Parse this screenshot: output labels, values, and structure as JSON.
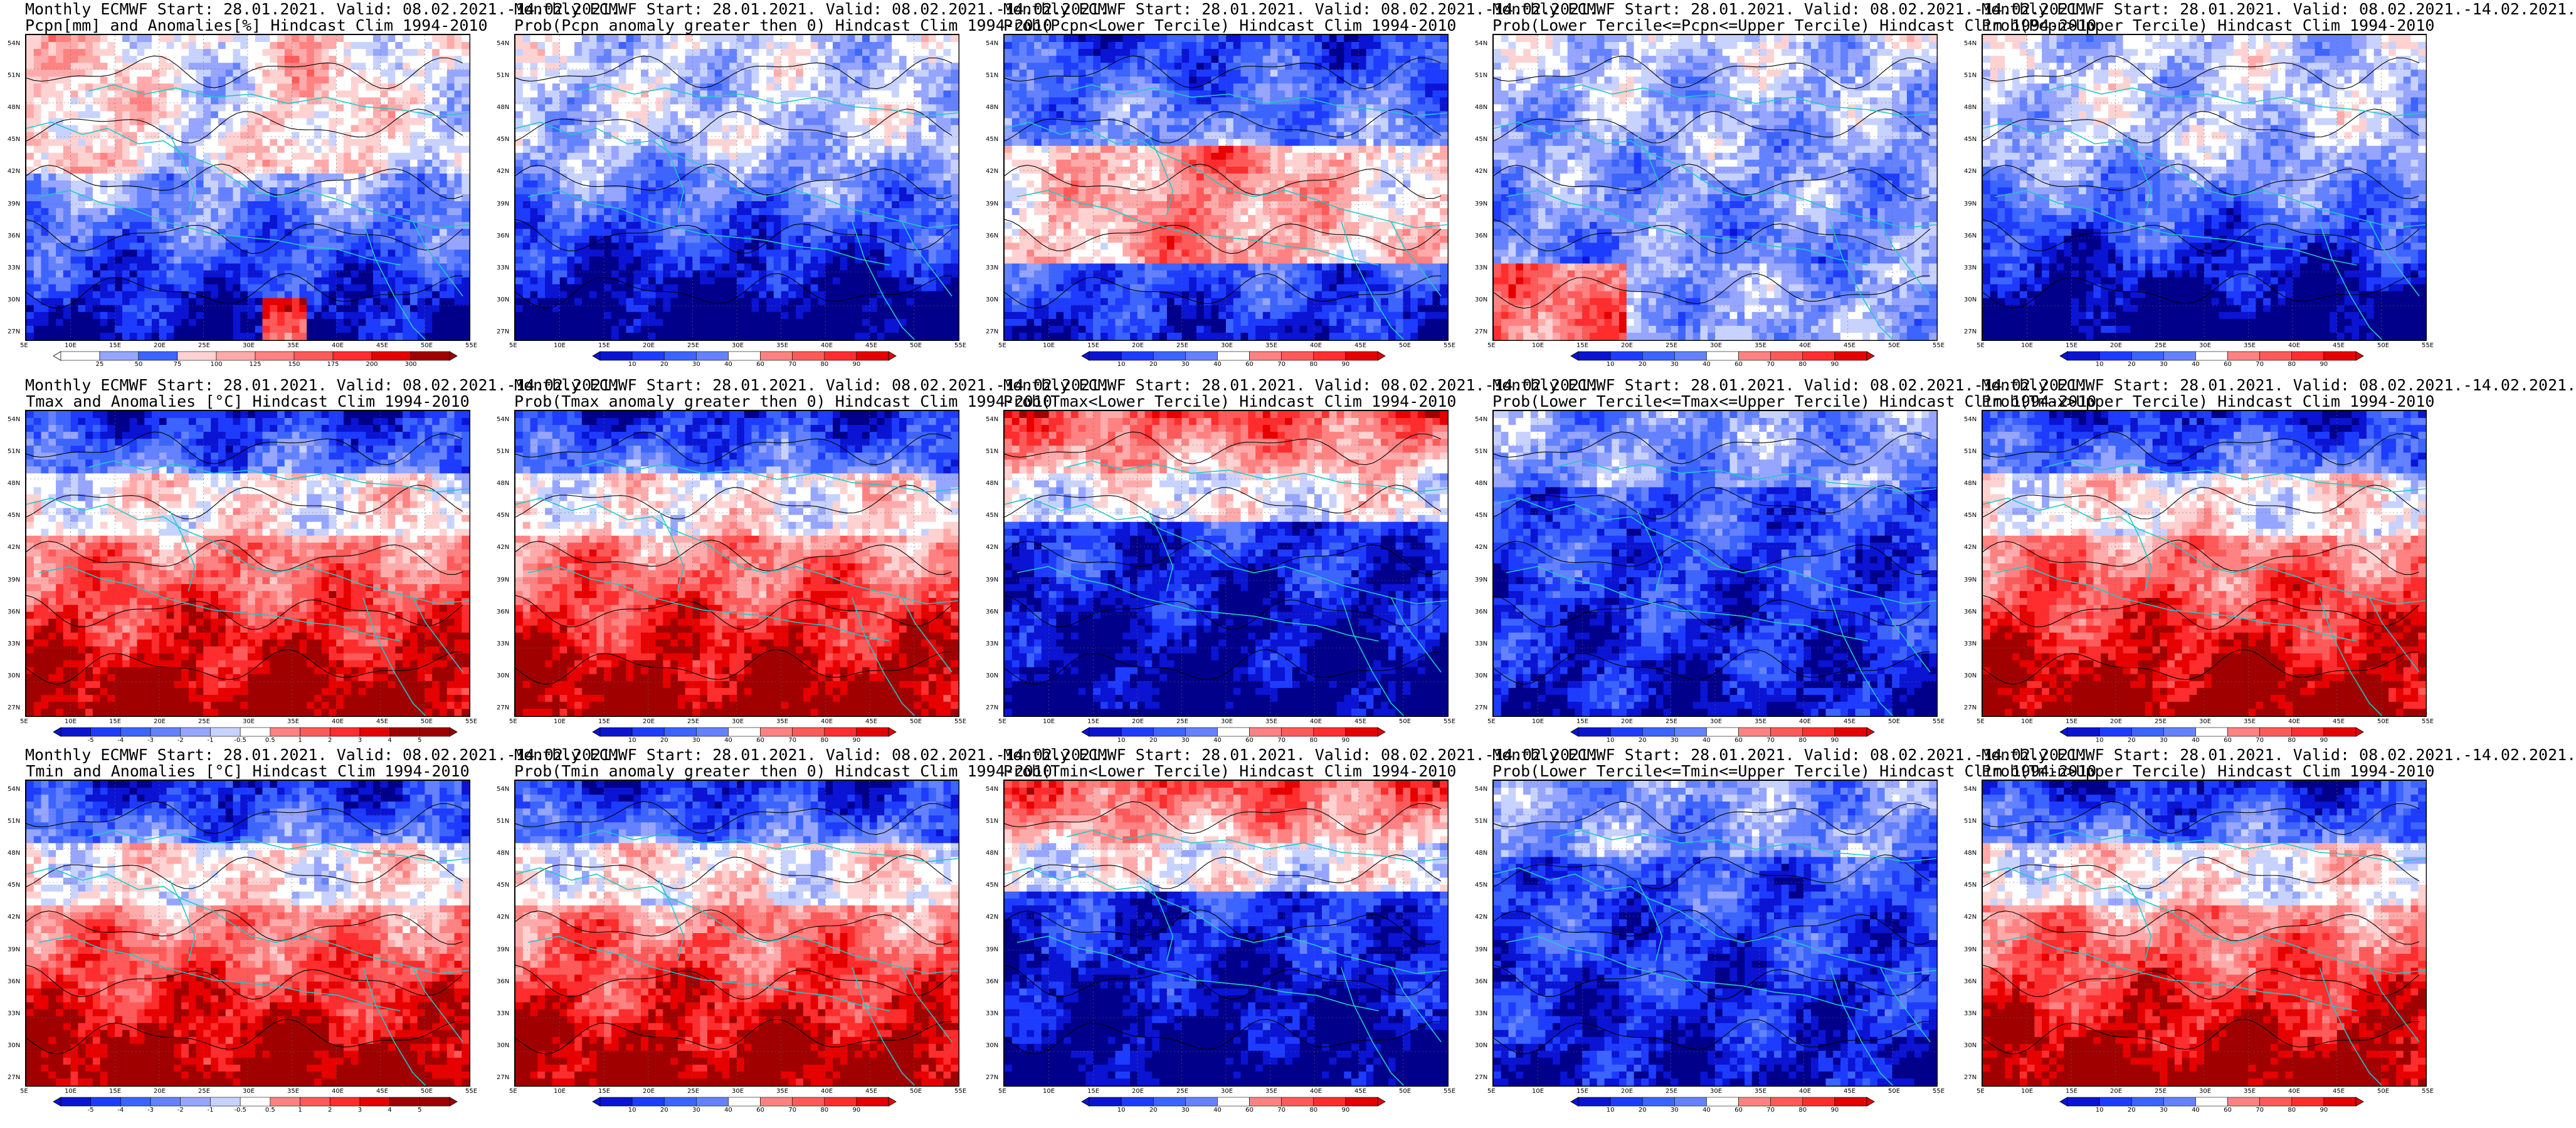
{
  "colors": {
    "blue_scale": [
      "#00008b",
      "#0a14d2",
      "#1e3cff",
      "#3c64ff",
      "#6482ff",
      "#96a5ff",
      "#c8d2ff",
      "#ffffff"
    ],
    "red_scale": [
      "#ffffff",
      "#ffd2d2",
      "#ffaaaa",
      "#ff8282",
      "#ff5a5a",
      "#ff2d2d",
      "#e60000",
      "#a00000"
    ],
    "coast": "#20c8c8",
    "contour": "#000000"
  },
  "axes": {
    "lon_labels": [
      "5E",
      "10E",
      "15E",
      "20E",
      "25E",
      "30E",
      "35E",
      "40E",
      "45E",
      "50E",
      "55E"
    ],
    "lat_labels": [
      "54N",
      "51N",
      "48N",
      "45N",
      "42N",
      "39N",
      "36N",
      "33N",
      "30N",
      "27N"
    ]
  },
  "colorbars": {
    "prob": [
      "10",
      "20",
      "30",
      "40",
      "60",
      "70",
      "80",
      "90"
    ],
    "pcpn_anom": [
      "25",
      "50",
      "75",
      "100",
      "125",
      "150",
      "175",
      "200",
      "300"
    ],
    "temp_anom": [
      "-5",
      "-4",
      "-3",
      "-2",
      "-1",
      "-0.5",
      "0.5",
      "1",
      "2",
      "3",
      "4",
      "5"
    ]
  },
  "panels": [
    {
      "title1": "Monthly ECMWF Start: 28.01.2021. Valid: 08.02.2021.-14.02.2021.",
      "title2": "Pcpn[mm] and Anomalies[%] Hindcast Clim 1994-2010",
      "scale": "pcpn_anom",
      "pattern": "pcpn_anom"
    },
    {
      "title1": "Monthly ECMWF Start: 28.01.2021. Valid: 08.02.2021.-14.02.2021.",
      "title2": "Prob(Pcpn anomaly greater then 0) Hindcast Clim 1994-2010",
      "scale": "prob",
      "pattern": "pcpn_blue"
    },
    {
      "title1": "Monthly ECMWF Start: 28.01.2021. Valid: 08.02.2021.-14.02.2021.",
      "title2": "Prob(Pcpn<Lower Tercile) Hindcast Clim 1994-2010",
      "scale": "prob",
      "pattern": "pcpn_lower"
    },
    {
      "title1": "Monthly ECMWF Start: 28.01.2021. Valid: 08.02.2021.-14.02.2021.",
      "title2": "Prob(Lower Tercile<=Pcpn<=Upper Tercile) Hindcast Clim 1994-2010",
      "scale": "prob",
      "pattern": "pcpn_mid"
    },
    {
      "title1": "Monthly ECMWF Start: 28.01.2021. Valid: 08.02.2021.-14.02.2021.",
      "title2": "Prob(Pcpn>Upper Tercile) Hindcast Clim 1994-2010",
      "scale": "prob",
      "pattern": "pcpn_blue"
    },
    {
      "title1": "Monthly ECMWF Start: 28.01.2021. Valid: 08.02.2021.-14.02.2021.",
      "title2": "Tmax and Anomalies [°C] Hindcast Clim 1994-2010",
      "scale": "temp_anom",
      "pattern": "warm_south"
    },
    {
      "title1": "Monthly ECMWF Start: 28.01.2021. Valid: 08.02.2021.-14.02.2021.",
      "title2": "Prob(Tmax anomaly greater then 0) Hindcast Clim 1994-2010",
      "scale": "prob",
      "pattern": "warm_south"
    },
    {
      "title1": "Monthly ECMWF Start: 28.01.2021. Valid: 08.02.2021.-14.02.2021.",
      "title2": "Prob(Tmax<Lower Tercile) Hindcast Clim 1994-2010",
      "scale": "prob",
      "pattern": "cold_south"
    },
    {
      "title1": "Monthly ECMWF Start: 28.01.2021. Valid: 08.02.2021.-14.02.2021.",
      "title2": "Prob(Lower Tercile<=Tmax<=Upper Tercile) Hindcast Clim 1994-2010",
      "scale": "prob",
      "pattern": "mid_blue"
    },
    {
      "title1": "Monthly ECMWF Start: 28.01.2021. Valid: 08.02.2021.-14.02.2021.",
      "title2": "Prob(Tmax>Upper Tercile) Hindcast Clim 1994-2010",
      "scale": "prob",
      "pattern": "warm_south"
    },
    {
      "title1": "Monthly ECMWF Start: 28.01.2021. Valid: 08.02.2021.-14.02.2021.",
      "title2": "Tmin and Anomalies [°C] Hindcast Clim 1994-2010",
      "scale": "temp_anom",
      "pattern": "warm_south"
    },
    {
      "title1": "Monthly ECMWF Start: 28.01.2021. Valid: 08.02.2021.-14.02.2021.",
      "title2": "Prob(Tmin anomaly greater then 0) Hindcast Clim 1994-2010",
      "scale": "prob",
      "pattern": "warm_south"
    },
    {
      "title1": "Monthly ECMWF Start: 28.01.2021. Valid: 08.02.2021.-14.02.2021.",
      "title2": "Prob(Tmin<Lower Tercile) Hindcast Clim 1994-2010",
      "scale": "prob",
      "pattern": "cold_south"
    },
    {
      "title1": "Monthly ECMWF Start: 28.01.2021. Valid: 08.02.2021.-14.02.2021.",
      "title2": "Prob(Lower Tercile<=Tmin<=Upper Tercile) Hindcast Clim 1994-2010",
      "scale": "prob",
      "pattern": "mid_blue"
    },
    {
      "title1": "Monthly ECMWF Start: 28.01.2021. Valid: 08.02.2021.-14.02.2021.",
      "title2": "Prob(Tmin>Upper Tercile) Hindcast Clim 1994-2010",
      "scale": "prob",
      "pattern": "warm_south"
    }
  ]
}
